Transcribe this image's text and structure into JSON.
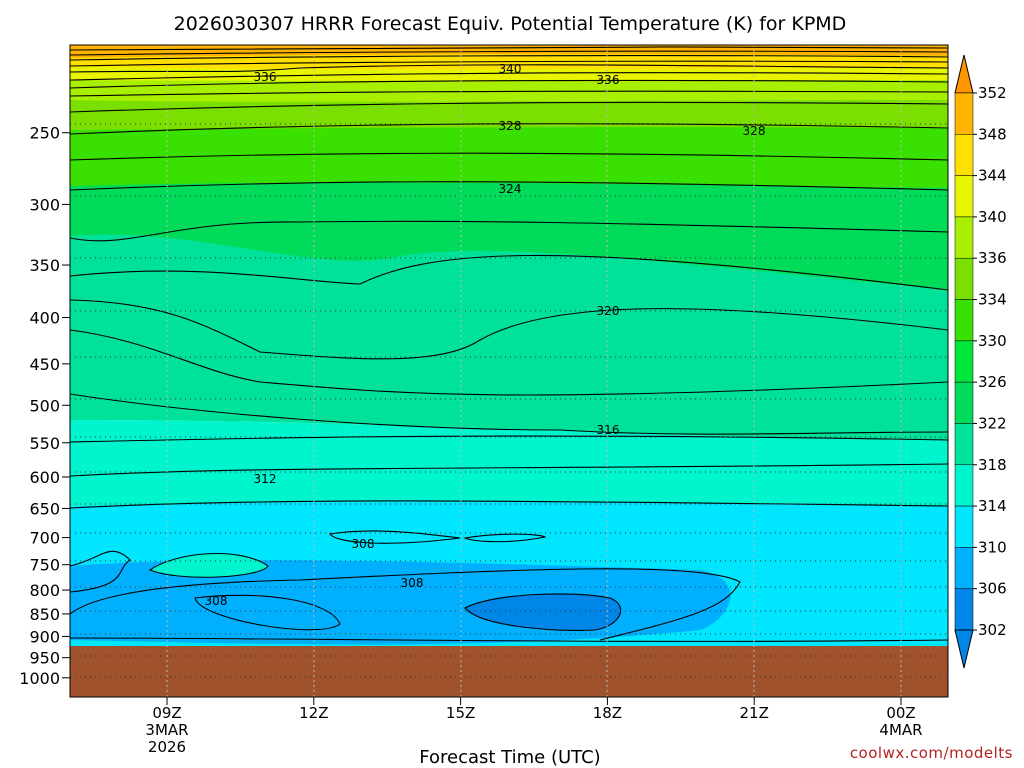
{
  "chart_data": {
    "type": "heatmap",
    "title": "2026030307 HRRR Forecast Equiv. Potential Temperature (K) for KPMD",
    "xlabel": "Forecast Time (UTC)",
    "ylabel": "",
    "y_scale": "log-pressure",
    "ylim": [
      1050,
      200
    ],
    "y_ticks": [
      250,
      300,
      350,
      400,
      450,
      500,
      550,
      600,
      650,
      700,
      750,
      800,
      850,
      900,
      950,
      1000
    ],
    "x_ticks": [
      {
        "label": "09Z",
        "sub1": "3MAR",
        "sub2": "2026"
      },
      {
        "label": "12Z",
        "sub1": "",
        "sub2": ""
      },
      {
        "label": "15Z",
        "sub1": "",
        "sub2": ""
      },
      {
        "label": "18Z",
        "sub1": "",
        "sub2": ""
      },
      {
        "label": "21Z",
        "sub1": "",
        "sub2": ""
      },
      {
        "label": "00Z",
        "sub1": "4MAR",
        "sub2": ""
      }
    ],
    "colorbar": {
      "levels": [
        302,
        306,
        310,
        314,
        318,
        322,
        326,
        330,
        334,
        336,
        340,
        344,
        348,
        352
      ],
      "colors": [
        "#0086e6",
        "#00b0ff",
        "#00e6ff",
        "#00f5cf",
        "#00e29a",
        "#00dc5a",
        "#00e63a",
        "#3ae000",
        "#7be000",
        "#a8f000",
        "#e8f500",
        "#ffe000",
        "#ffb400",
        "#ff9600"
      ]
    },
    "contour_labels": [
      "336",
      "340",
      "336",
      "328",
      "328",
      "324",
      "320",
      "316",
      "312",
      "308",
      "308",
      "308"
    ],
    "terrain_color": "#a0522d",
    "surface_pressure": 925
  },
  "credit": "coolwx.com/modelts"
}
